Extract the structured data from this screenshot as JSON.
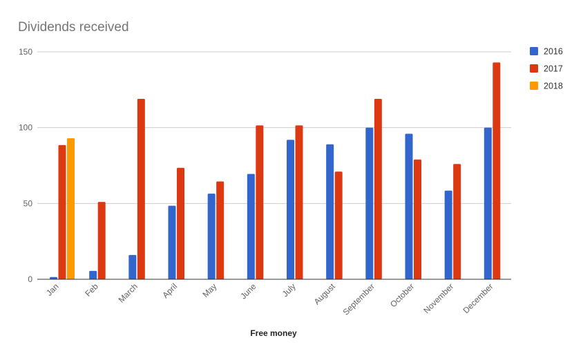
{
  "chart_data": {
    "type": "bar",
    "title": "Dividends received",
    "xlabel": "Free money",
    "ylabel": "",
    "ylim": [
      0,
      150
    ],
    "yticks": [
      0,
      50,
      100,
      150
    ],
    "grid": true,
    "legend_position": "right",
    "categories": [
      "Jan",
      "Feb",
      "March",
      "April",
      "May",
      "June",
      "July",
      "August",
      "September",
      "October",
      "November",
      "December"
    ],
    "series": [
      {
        "name": "2016",
        "color": "#3366cc",
        "values": [
          1.5,
          5.5,
          16,
          48.5,
          56.5,
          69.5,
          92,
          89,
          100,
          96,
          58.5,
          100
        ]
      },
      {
        "name": "2017",
        "color": "#dc3912",
        "values": [
          88.5,
          51,
          119,
          73.5,
          64.5,
          101.5,
          101.5,
          71,
          119,
          79,
          76,
          143
        ]
      },
      {
        "name": "2018",
        "color": "#ff9900",
        "values": [
          93,
          null,
          null,
          null,
          null,
          null,
          null,
          null,
          null,
          null,
          null,
          null
        ]
      }
    ]
  }
}
